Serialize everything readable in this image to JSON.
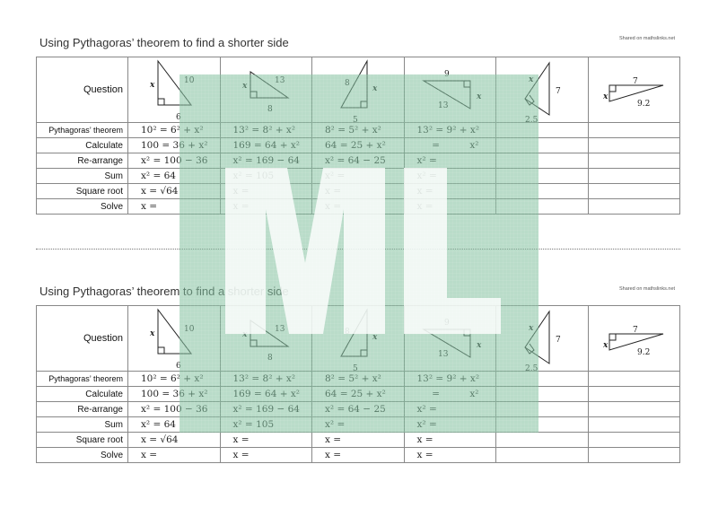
{
  "watermark": {
    "text": "ML",
    "green": "#7fbf9c",
    "white": "#ffffff"
  },
  "divider_style": "dotted",
  "worksheets": [
    {
      "title": "Using Pythagoras’ theorem to find a shorter side",
      "shared": "Shared on mathslinks.net",
      "row_labels": [
        "Question",
        "Pythagoras’ theorem",
        "Calculate",
        "Re-arrange",
        "Sum",
        "Square root",
        "Solve"
      ],
      "questions": [
        {
          "labels": [
            "x",
            "10",
            "6"
          ],
          "steps": [
            "10² = 6² + x²",
            "100 = 36 + x²",
            "x² = 100 − 36",
            "x² = 64",
            "x = √64",
            "x ="
          ]
        },
        {
          "labels": [
            "x",
            "13",
            "8"
          ],
          "steps": [
            "13² = 8² + x²",
            "169 = 64 + x²",
            "x² = 169 − 64",
            "x² = 105",
            "x =",
            "x ="
          ]
        },
        {
          "labels": [
            "8",
            "x",
            "5"
          ],
          "steps": [
            "8² = 5² + x²",
            "64 = 25 + x²",
            "x² = 64 − 25",
            "x² =",
            "x =",
            "x ="
          ]
        },
        {
          "labels": [
            "9",
            "x",
            "13"
          ],
          "steps": [
            "13² = 9² + x²",
            "     =          x²",
            "x² =",
            "x² =",
            "x =",
            "x ="
          ]
        },
        {
          "labels": [
            "x",
            "7",
            "2.5"
          ],
          "steps": [
            "",
            "",
            "",
            "",
            "",
            ""
          ]
        },
        {
          "labels": [
            "7",
            "x",
            "9.2"
          ],
          "steps": [
            "",
            "",
            "",
            "",
            "",
            ""
          ]
        }
      ]
    },
    {
      "title": "Using Pythagoras’ theorem to find a shorter side",
      "shared": "Shared on mathslinks.net",
      "row_labels": [
        "Question",
        "Pythagoras’ theorem",
        "Calculate",
        "Re-arrange",
        "Sum",
        "Square root",
        "Solve"
      ],
      "questions": [
        {
          "labels": [
            "x",
            "10",
            "6"
          ],
          "steps": [
            "10² = 6² + x²",
            "100 = 36 + x²",
            "x² = 100 − 36",
            "x² = 64",
            "x = √64",
            "x ="
          ]
        },
        {
          "labels": [
            "x",
            "13",
            "8"
          ],
          "steps": [
            "13² = 8² + x²",
            "169 = 64 + x²",
            "x² = 169 − 64",
            "x² = 105",
            "x =",
            "x ="
          ]
        },
        {
          "labels": [
            "8",
            "x",
            "5"
          ],
          "steps": [
            "8² = 5² + x²",
            "64 = 25 + x²",
            "x² = 64 − 25",
            "x² =",
            "x =",
            "x ="
          ]
        },
        {
          "labels": [
            "9",
            "x",
            "13"
          ],
          "steps": [
            "13² = 9² + x²",
            "     =          x²",
            "x² =",
            "x² =",
            "x =",
            "x ="
          ]
        },
        {
          "labels": [
            "x",
            "7",
            "2.5"
          ],
          "steps": [
            "",
            "",
            "",
            "",
            "",
            ""
          ]
        },
        {
          "labels": [
            "7",
            "x",
            "9.2"
          ],
          "steps": [
            "",
            "",
            "",
            "",
            "",
            ""
          ]
        }
      ]
    }
  ]
}
